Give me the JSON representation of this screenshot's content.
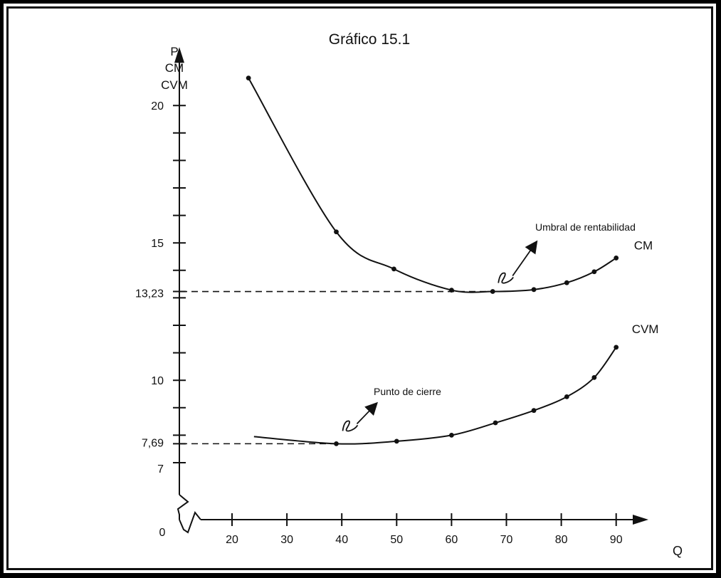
{
  "colors": {
    "ink": "#111111",
    "background": "#ffffff",
    "frame": "#000000"
  },
  "chart_data": {
    "type": "line",
    "title": "Gráfico 15.1",
    "ylabel_lines": [
      "P",
      "CM",
      "CVM"
    ],
    "xlabel": "Q",
    "origin_label": "0",
    "xlim": [
      20,
      90
    ],
    "ylim": [
      7,
      20
    ],
    "x_ticks": [
      20,
      30,
      40,
      50,
      60,
      70,
      80,
      90
    ],
    "y_ticks_labeled": [
      {
        "value": 20,
        "label": "20"
      },
      {
        "value": 15,
        "label": "15"
      },
      {
        "value": 13.23,
        "label": "13,23"
      },
      {
        "value": 10,
        "label": "10"
      },
      {
        "value": 7.69,
        "label": "7,69"
      },
      {
        "value": 7,
        "label": "7"
      }
    ],
    "y_minor_ticks": [
      8,
      9,
      11,
      12,
      13,
      14,
      16,
      17,
      18,
      19
    ],
    "series": [
      {
        "name": "CM",
        "x": [
          23,
          39,
          49.5,
          60,
          67.5,
          75,
          81,
          86,
          90
        ],
        "y": [
          21,
          15.4,
          14.05,
          13.28,
          13.23,
          13.3,
          13.55,
          13.95,
          14.45
        ]
      },
      {
        "name": "CVM",
        "x": [
          24,
          39,
          50,
          60,
          68,
          75,
          81,
          86,
          90
        ],
        "y": [
          7.95,
          7.69,
          7.78,
          8.0,
          8.45,
          8.9,
          9.4,
          10.1,
          11.2
        ]
      }
    ],
    "reference_lines": [
      {
        "x": 67.5,
        "y": 13.23
      },
      {
        "x": 39,
        "y": 7.69
      }
    ],
    "annotations": [
      {
        "text": "Umbral de rentabilidad",
        "x": 67.5,
        "y": 13.23
      },
      {
        "text": "Punto de cierre",
        "x": 39,
        "y": 7.69
      }
    ]
  }
}
